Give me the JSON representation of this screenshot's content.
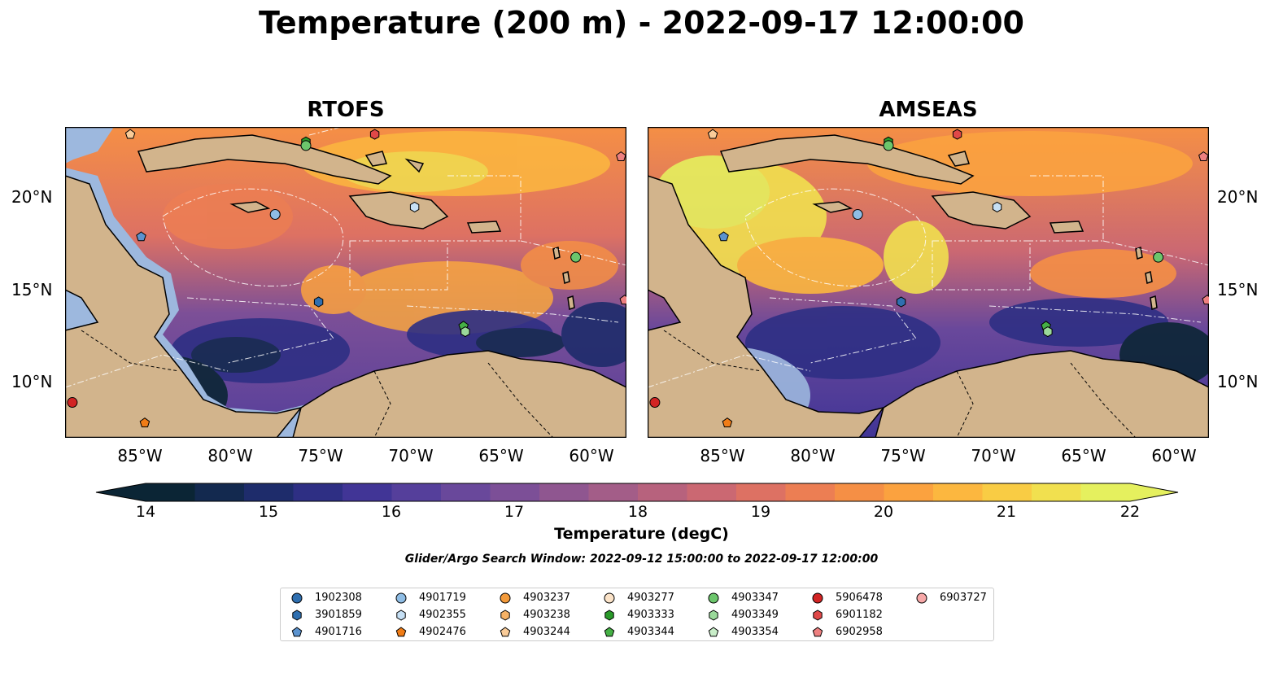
{
  "title": "Temperature (200 m) - 2022-09-17 12:00:00",
  "panels": [
    {
      "title": "RTOFS"
    },
    {
      "title": "AMSEAS"
    }
  ],
  "map": {
    "lon_range": [
      -89,
      -58
    ],
    "lat_range": [
      7,
      23.7
    ],
    "lat_ticks": [
      "20°N",
      "15°N",
      "10°N"
    ],
    "lon_ticks": [
      "85°W",
      "80°W",
      "75°W",
      "70°W",
      "65°W",
      "60°W"
    ],
    "land_color": "#d2b48c",
    "shelf_color": "#9db8de"
  },
  "colorbar": {
    "label": "Temperature (degC)",
    "ticks": [
      "14",
      "15",
      "16",
      "17",
      "18",
      "19",
      "20",
      "21",
      "22"
    ],
    "range": [
      14,
      22
    ],
    "extend": "both",
    "colors": [
      "#0b2535",
      "#13294f",
      "#1e2c6b",
      "#2e2f84",
      "#413596",
      "#553f9b",
      "#69489b",
      "#7c4f97",
      "#8f5690",
      "#a35d88",
      "#b7627d",
      "#cb6872",
      "#dd7163",
      "#ec7e53",
      "#f58f45",
      "#fba23f",
      "#fcb73f",
      "#f9cc44",
      "#f1e04f",
      "#e5f05e"
    ]
  },
  "search_window": "Glider/Argo Search Window: 2022-09-12 15:00:00 to 2022-09-17 12:00:00",
  "legend": [
    {
      "id": "1902308",
      "marker": "circle",
      "color": "#2f6fb0"
    },
    {
      "id": "3901859",
      "marker": "hexagon",
      "color": "#2f6fb0"
    },
    {
      "id": "4901716",
      "marker": "pentagon",
      "color": "#5b93cf"
    },
    {
      "id": "4901719",
      "marker": "circle",
      "color": "#8fbde5"
    },
    {
      "id": "4902355",
      "marker": "hexagon",
      "color": "#c6e0f5"
    },
    {
      "id": "4902476",
      "marker": "pentagon",
      "color": "#f07c16"
    },
    {
      "id": "4903237",
      "marker": "circle",
      "color": "#f39a3a"
    },
    {
      "id": "4903238",
      "marker": "hexagon",
      "color": "#f6b266"
    },
    {
      "id": "4903244",
      "marker": "pentagon",
      "color": "#f9cb98"
    },
    {
      "id": "4903277",
      "marker": "circle",
      "color": "#fbe3c8"
    },
    {
      "id": "4903333",
      "marker": "hexagon",
      "color": "#2a9a2a"
    },
    {
      "id": "4903344",
      "marker": "pentagon",
      "color": "#45b045"
    },
    {
      "id": "4903347",
      "marker": "circle",
      "color": "#6cc66c"
    },
    {
      "id": "4903349",
      "marker": "hexagon",
      "color": "#9ad99a"
    },
    {
      "id": "4903354",
      "marker": "pentagon",
      "color": "#c8edc8"
    },
    {
      "id": "5906478",
      "marker": "circle",
      "color": "#d22424"
    },
    {
      "id": "6901182",
      "marker": "hexagon",
      "color": "#e04848"
    },
    {
      "id": "6902958",
      "marker": "pentagon",
      "color": "#ee8080"
    },
    {
      "id": "6903727",
      "marker": "circle",
      "color": "#f7a8a8"
    }
  ],
  "platforms": [
    {
      "id": "5906478",
      "lon": -88.6,
      "lat": 8.9
    },
    {
      "id": "4902476",
      "lon": -84.6,
      "lat": 7.8
    },
    {
      "id": "4903244",
      "lon": -85.4,
      "lat": 23.3
    },
    {
      "id": "4903333",
      "lon": -75.7,
      "lat": 22.9
    },
    {
      "id": "4903347",
      "lon": -75.7,
      "lat": 22.7
    },
    {
      "id": "6901182",
      "lon": -71.9,
      "lat": 23.3
    },
    {
      "id": "6902958",
      "lon": -58.3,
      "lat": 22.1
    },
    {
      "id": "4901719",
      "lon": -77.4,
      "lat": 19.0
    },
    {
      "id": "4902355",
      "lon": -69.7,
      "lat": 19.4
    },
    {
      "id": "4901716",
      "lon": -84.8,
      "lat": 17.8
    },
    {
      "id": "3901859",
      "lon": -75.0,
      "lat": 14.3
    },
    {
      "id": "4903347",
      "lon": -60.8,
      "lat": 16.7
    },
    {
      "id": "6902958",
      "lon": -58.1,
      "lat": 14.4
    },
    {
      "id": "4903344",
      "lon": -67.0,
      "lat": 13.0
    },
    {
      "id": "4903349",
      "lon": -66.9,
      "lat": 12.7
    }
  ]
}
